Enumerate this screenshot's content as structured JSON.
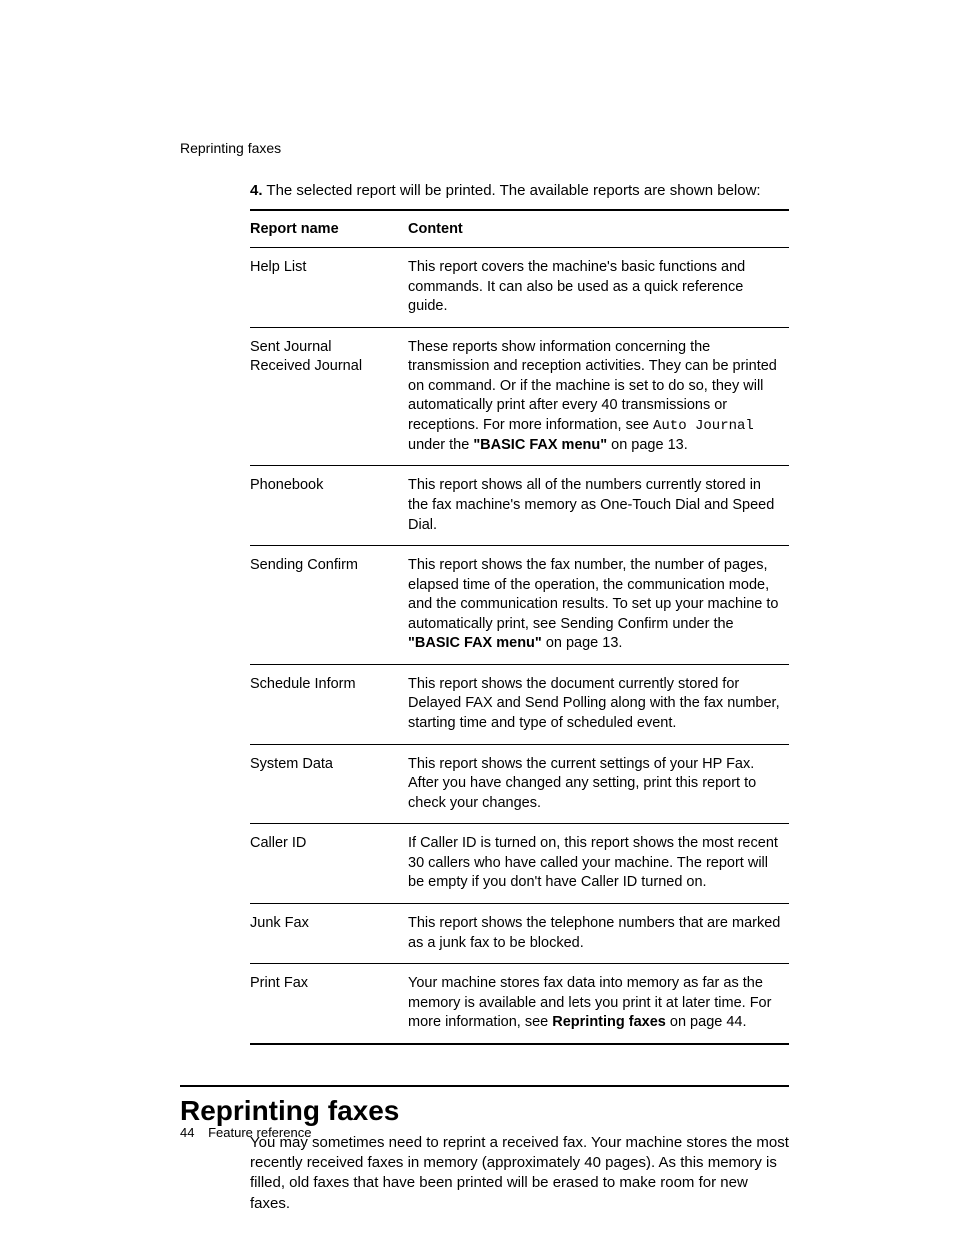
{
  "runningHead": "Reprinting faxes",
  "step": {
    "num": "4.",
    "text": "The selected report will be printed. The available reports are shown below:"
  },
  "table": {
    "headers": {
      "name": "Report name",
      "content": "Content"
    },
    "rows": [
      {
        "name": "Help List",
        "content": "This report covers the machine's basic functions and commands. It can also be used as a quick reference guide."
      },
      {
        "nameLines": [
          "Sent Journal",
          "Received Journal"
        ],
        "content_pre": "These reports show information concerning the transmission and reception activities. They can be printed on command. Or if the machine is set to do so, they will automatically print after every 40 transmissions or receptions. For more information, see ",
        "content_mono": "Auto Journal",
        "content_mid": " under the ",
        "content_bold": "\"BASIC FAX menu\"",
        "content_post": " on page 13."
      },
      {
        "name": "Phonebook",
        "content": "This report shows all of the numbers currently stored in the fax machine's memory as One-Touch Dial and Speed Dial."
      },
      {
        "name": "Sending Confirm",
        "content_pre": "This report shows the fax number, the number of pages, elapsed time of the operation, the communication mode, and the communication results. To set up your machine to automatically print, see Sending Confirm under the ",
        "content_bold": "\"BASIC FAX menu\"",
        "content_post": " on page 13."
      },
      {
        "name": "Schedule Inform",
        "content": "This report shows the document currently stored for Delayed FAX and Send Polling along with the fax number, starting time and type of scheduled event."
      },
      {
        "name": "System Data",
        "content": "This report shows the current settings of your HP Fax. After you have changed any setting, print this report to check your changes."
      },
      {
        "name": "Caller ID",
        "content": "If Caller ID is turned on, this report shows the most recent 30 callers who have called your machine. The report will be empty if you don't have Caller ID turned on."
      },
      {
        "name": "Junk Fax",
        "content": "This report shows the telephone numbers that are marked as a junk fax to be blocked."
      },
      {
        "name": "Print Fax",
        "content_pre": "Your machine stores fax data into memory as far as the memory is available and lets you print it at later time. For more information, see ",
        "content_bold": "Reprinting faxes",
        "content_post": " on page 44."
      }
    ]
  },
  "section": {
    "title": "Reprinting faxes",
    "body": "You may sometimes need to reprint a received fax. Your machine stores the most recently received faxes in memory (approximately 40 pages). As this memory is filled, old faxes that have been printed will be erased to make room for new faxes."
  },
  "footer": {
    "page": "44",
    "chapter": "Feature reference"
  }
}
